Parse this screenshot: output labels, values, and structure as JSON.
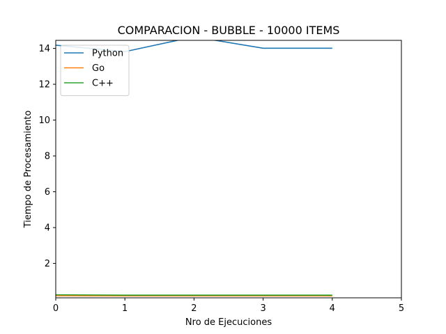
{
  "chart_data": {
    "type": "line",
    "title": "COMPARACION - BUBBLE - 10000 ITEMS",
    "xlabel": "Nro de Ejecuciones",
    "ylabel": "Tiempo de Procesamiento",
    "xlim": [
      0,
      5
    ],
    "ylim": [
      0.08,
      14.45
    ],
    "x_ticks": [
      0,
      1,
      2,
      3,
      4,
      5
    ],
    "y_ticks": [
      2,
      4,
      6,
      8,
      10,
      12,
      14
    ],
    "x": [
      0,
      1,
      2,
      3,
      4
    ],
    "grid": false,
    "legend_position": "upper-left",
    "series": [
      {
        "name": "Python",
        "color": "#1f77b4",
        "values": [
          14.18,
          13.82,
          14.65,
          14.01,
          14.01
        ]
      },
      {
        "name": "Go",
        "color": "#ff7f0e",
        "values": [
          0.2,
          0.19,
          0.19,
          0.19,
          0.19
        ]
      },
      {
        "name": "C++",
        "color": "#2ca02c",
        "values": [
          0.25,
          0.23,
          0.23,
          0.23,
          0.23
        ]
      }
    ]
  }
}
